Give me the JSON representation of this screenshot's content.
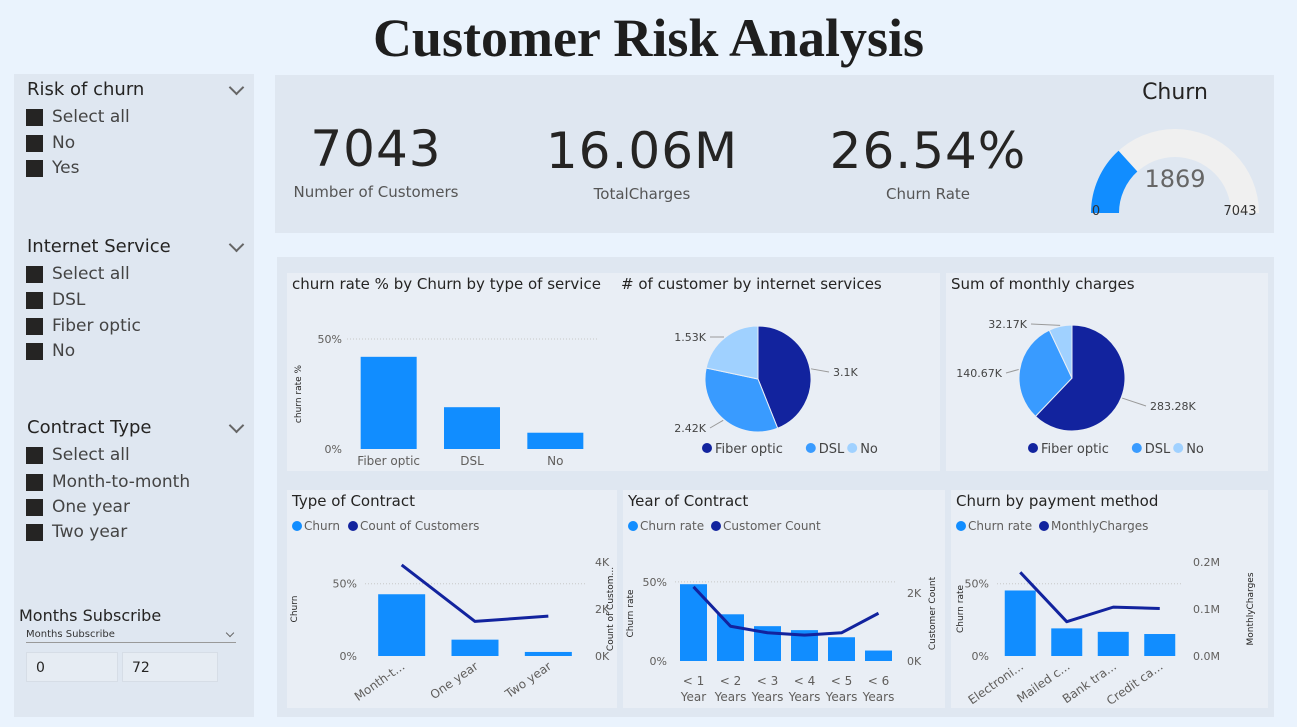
{
  "title": "Customer Risk Analysis",
  "colors": {
    "dark_navy": "#12239e",
    "blue": "#118dff",
    "mid_blue": "#399bff",
    "light_blue": "#a0d1ff",
    "gauge_track": "#f0f0f0"
  },
  "slicers": [
    {
      "title": "Risk of churn",
      "items": [
        "Select all",
        "No",
        "Yes"
      ]
    },
    {
      "title": "Internet Service",
      "items": [
        "Select all",
        "DSL",
        "Fiber optic",
        "No"
      ]
    },
    {
      "title": "Contract Type",
      "items": [
        "Select all",
        "Month-to-month",
        "One year",
        "Two year"
      ]
    }
  ],
  "months_subscribe": {
    "title": "Months Subscribe",
    "field_label": "Months Subscribe",
    "min": "0",
    "max": "72"
  },
  "kpis": [
    {
      "value": "7043",
      "label": "Number of Customers"
    },
    {
      "value": "16.06M",
      "label": "TotalCharges"
    },
    {
      "value": "26.54%",
      "label": "Churn Rate"
    }
  ],
  "gauge": {
    "title": "Churn",
    "value": 1869,
    "value_label": "1869",
    "min": 0,
    "max": 7043,
    "min_label": "0",
    "max_label": "7043"
  },
  "chart_data": [
    {
      "type": "bar",
      "title": "churn rate % by Churn by type of service",
      "ylabel": "churn rate %",
      "categories": [
        "Fiber optic",
        "DSL",
        "No"
      ],
      "values": [
        41.9,
        19.0,
        7.4
      ],
      "ylim": [
        0,
        50
      ],
      "yticks": [
        "0%",
        "50%"
      ]
    },
    {
      "type": "pie",
      "title": "# of customer by internet services",
      "categories": [
        "Fiber optic",
        "DSL",
        "No"
      ],
      "values": [
        3096,
        2421,
        1526
      ],
      "data_labels": [
        "3.1K",
        "2.42K",
        "1.53K"
      ],
      "legend": "bottom"
    },
    {
      "type": "pie",
      "title": "Sum of monthly charges",
      "categories": [
        "Fiber optic",
        "DSL",
        "No"
      ],
      "values": [
        283.28,
        140.67,
        32.17
      ],
      "data_labels": [
        "283.28K",
        "140.67K",
        "32.17K"
      ],
      "legend": "bottom"
    },
    {
      "type": "bar",
      "title": "Type of Contract",
      "categories": [
        "Month-t...",
        "One year",
        "Two year"
      ],
      "series": [
        {
          "name": "Churn",
          "type": "bar",
          "values": [
            42.7,
            11.3,
            2.8
          ]
        },
        {
          "name": "Count of Customers",
          "type": "line",
          "values": [
            3875,
            1473,
            1695
          ]
        }
      ],
      "ylabel": "Churn",
      "y2label": "Count of Custom...",
      "ylim": [
        0,
        65
      ],
      "yticks": [
        "0%",
        "50%"
      ],
      "y2lim": [
        0,
        4000
      ],
      "y2ticks": [
        "0K",
        "2K",
        "4K"
      ]
    },
    {
      "type": "bar",
      "title": "Year of Contract",
      "categories": [
        "< 1 Year",
        "< 2 Years",
        "< 3 Years",
        "< 4 Years",
        "< 5 Years",
        "< 6 Years"
      ],
      "series": [
        {
          "name": "Churn rate",
          "type": "bar",
          "values": [
            48.5,
            29.5,
            22.0,
            19.5,
            15.0,
            6.6
          ]
        },
        {
          "name": "Customer Count",
          "type": "line",
          "values": [
            2186,
            1024,
            832,
            762,
            832,
            1407
          ]
        }
      ],
      "ylabel": "Churn rate",
      "y2label": "Customer Count",
      "ylim": [
        0,
        60
      ],
      "yticks": [
        "0%",
        "50%"
      ],
      "y2lim": [
        0,
        2800
      ],
      "y2ticks": [
        "0K",
        "2K"
      ]
    },
    {
      "type": "bar",
      "title": "Churn by payment method",
      "categories": [
        "Electroni...",
        "Mailed c...",
        "Bank tra...",
        "Credit ca..."
      ],
      "series": [
        {
          "name": "Churn rate",
          "type": "bar",
          "values": [
            45.3,
            19.1,
            16.7,
            15.2
          ]
        },
        {
          "name": "MonthlyCharges",
          "type": "line",
          "values": [
            0.178,
            0.073,
            0.104,
            0.101
          ]
        }
      ],
      "ylabel": "Churn rate",
      "y2label": "MonthlyCharges",
      "ylim": [
        0,
        65
      ],
      "yticks": [
        "0%",
        "50%"
      ],
      "y2lim": [
        0,
        0.2
      ],
      "y2ticks": [
        "0.0M",
        "0.1M",
        "0.2M"
      ]
    }
  ]
}
